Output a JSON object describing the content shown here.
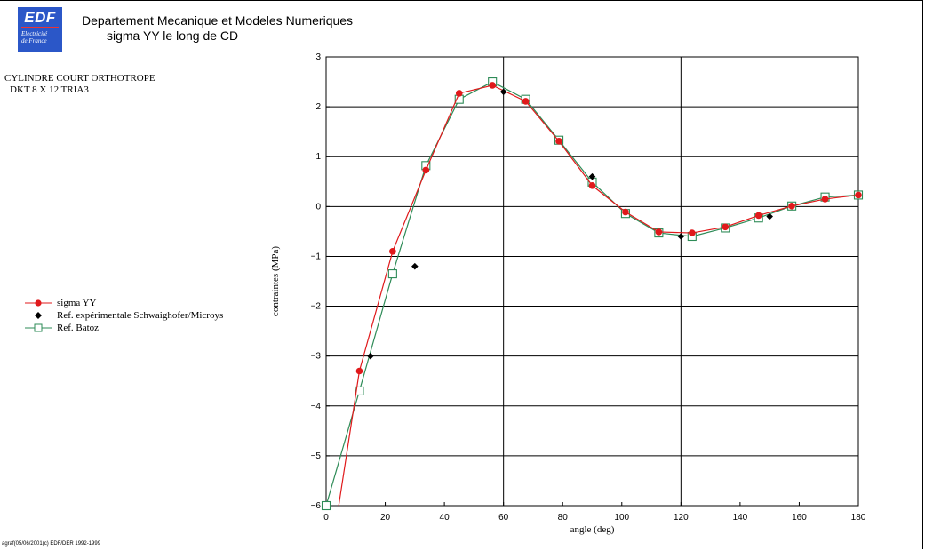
{
  "header": {
    "logo_text": "EDF",
    "logo_sub_1": "Electricité",
    "logo_sub_2": "de France",
    "title": "Departement Mecanique et Modeles Numeriques",
    "subtitle": "sigma YY le long de CD"
  },
  "case_info": {
    "line1": "CYLINDRE COURT ORTHOTROPE",
    "line2": "DKT 8 X 12 TRIA3"
  },
  "footer": "agraf(05/06/2001(c) EDF/DER 1992-1999",
  "colors": {
    "sigma": "#e0191b",
    "batoz": "#2e8b57",
    "exp": "#000000"
  },
  "chart_data": {
    "type": "line",
    "title": "sigma YY le long de CD",
    "xlabel": "angle (deg)",
    "ylabel": "contraintes (MPa)",
    "xlim": [
      0,
      180
    ],
    "ylim": [
      -6,
      3
    ],
    "x_ticks": [
      0,
      20,
      40,
      60,
      80,
      100,
      120,
      140,
      160,
      180
    ],
    "y_ticks": [
      3,
      2,
      1,
      0,
      -1,
      -2,
      -3,
      -4,
      -5,
      -6
    ],
    "x_tick_labels": [
      "0",
      "20",
      "40",
      "60",
      "80",
      "100",
      "120",
      "140",
      "160",
      "180"
    ],
    "y_tick_labels": [
      "3",
      "2",
      "1",
      "0",
      "−1",
      "−2",
      "−3",
      "−4",
      "−5",
      "−6"
    ],
    "grid_x": [
      60,
      120
    ],
    "grid_y": [
      2,
      1,
      0,
      -1,
      -2,
      -3,
      -4,
      -5
    ],
    "legend_position": "left",
    "series": [
      {
        "name": "sigma YY",
        "marker": "circle",
        "x": [
          3.75,
          11.25,
          22.5,
          33.75,
          45,
          56.25,
          67.5,
          78.75,
          90,
          101.25,
          112.5,
          123.75,
          135,
          146.25,
          157.5,
          168.75,
          180
        ],
        "y": [
          -6.2,
          -3.3,
          -0.9,
          0.73,
          2.27,
          2.43,
          2.11,
          1.31,
          0.42,
          -0.11,
          -0.51,
          -0.53,
          -0.41,
          -0.18,
          0.01,
          0.15,
          0.23
        ]
      },
      {
        "name": "Ref. expérimentale Schwaighofer/Microys",
        "marker": "diamond",
        "x": [
          15,
          30,
          60,
          90,
          120,
          150
        ],
        "y": [
          -3.0,
          -1.2,
          2.3,
          0.6,
          -0.6,
          -0.2
        ]
      },
      {
        "name": "Ref. Batoz",
        "marker": "square",
        "x": [
          0,
          11.25,
          22.5,
          33.75,
          45,
          56.25,
          67.5,
          78.75,
          90,
          101.25,
          112.5,
          123.75,
          135,
          146.25,
          157.5,
          168.75,
          180
        ],
        "y": [
          -6.0,
          -3.7,
          -1.35,
          0.82,
          2.15,
          2.5,
          2.15,
          1.33,
          0.49,
          -0.14,
          -0.53,
          -0.6,
          -0.43,
          -0.23,
          0.01,
          0.19,
          0.23
        ]
      }
    ]
  }
}
